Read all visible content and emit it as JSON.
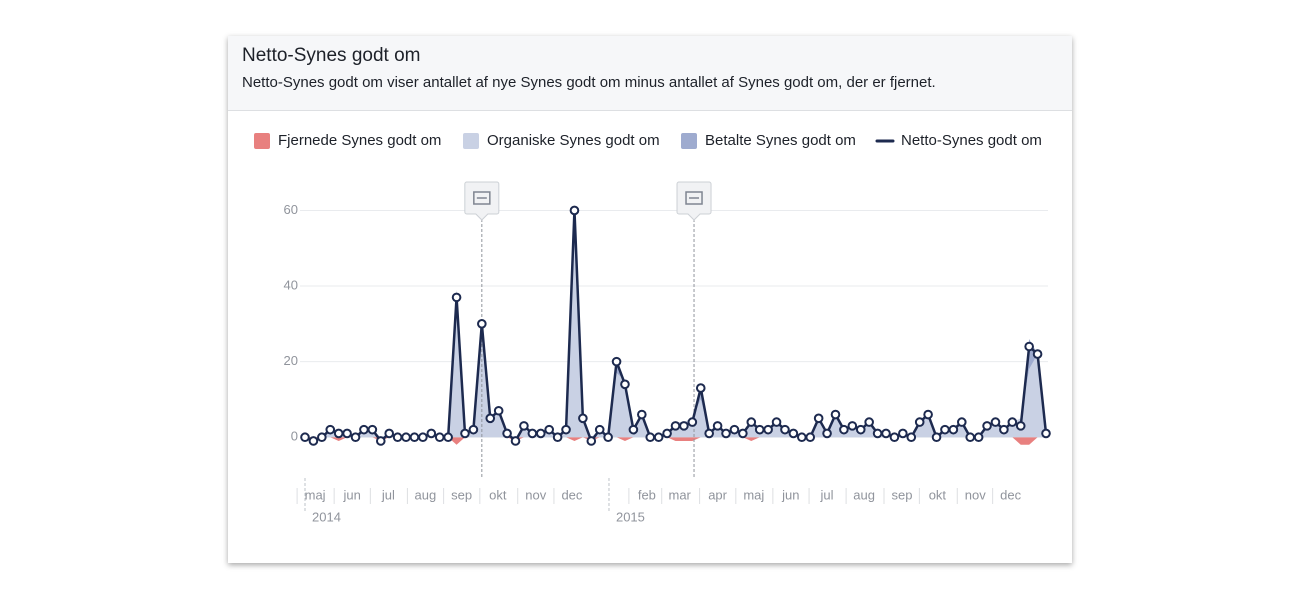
{
  "chart_data": {
    "type": "area",
    "title": "Netto-Synes godt om",
    "subtitle": "Netto-Synes godt om viser antallet af nye Synes godt om minus antallet af Synes godt om, der er fjernet.",
    "xlim": [
      0,
      88
    ],
    "ylim": [
      -10,
      67
    ],
    "yticks": [
      0,
      20,
      40,
      60
    ],
    "grid": true,
    "xticks": [
      {
        "value": 1.2,
        "label": "maj"
      },
      {
        "value": 5.6,
        "label": "jun"
      },
      {
        "value": 9.9,
        "label": "jul"
      },
      {
        "value": 14.3,
        "label": "aug"
      },
      {
        "value": 18.6,
        "label": "sep"
      },
      {
        "value": 22.9,
        "label": "okt"
      },
      {
        "value": 27.4,
        "label": "nov"
      },
      {
        "value": 31.7,
        "label": "dec"
      },
      {
        "value": 40.6,
        "label": "feb"
      },
      {
        "value": 44.5,
        "label": "mar"
      },
      {
        "value": 49.0,
        "label": "apr"
      },
      {
        "value": 53.3,
        "label": "maj"
      },
      {
        "value": 57.7,
        "label": "jun"
      },
      {
        "value": 62.0,
        "label": "jul"
      },
      {
        "value": 66.4,
        "label": "aug"
      },
      {
        "value": 70.9,
        "label": "sep"
      },
      {
        "value": 75.1,
        "label": "okt"
      },
      {
        "value": 79.6,
        "label": "nov"
      },
      {
        "value": 83.8,
        "label": "dec"
      }
    ],
    "years": [
      {
        "value": 0,
        "label": "2014"
      },
      {
        "value": 36.1,
        "label": "2015"
      }
    ],
    "event_markers": [
      21,
      46.2
    ],
    "series": [
      {
        "name": "Fjernede Synes godt om",
        "color": "#e8807f",
        "type": "area",
        "values": [
          0,
          -1,
          0,
          0,
          -1,
          0,
          0,
          0,
          0,
          -1,
          0,
          0,
          0,
          0,
          0,
          0,
          0,
          0,
          -2,
          0,
          0,
          0,
          0,
          0,
          0,
          -1,
          0,
          0,
          0,
          0,
          0,
          0,
          -1,
          0,
          -1,
          0,
          0,
          0,
          -1,
          0,
          0,
          0,
          0,
          0,
          -1,
          -1,
          -1,
          0,
          0,
          0,
          0,
          0,
          0,
          -1,
          0,
          0,
          0,
          0,
          0,
          0,
          0,
          0,
          0,
          0,
          0,
          0,
          0,
          0,
          0,
          0,
          0,
          0,
          0,
          0,
          0,
          0,
          0,
          0,
          0,
          0,
          0,
          0,
          0,
          0,
          0,
          -2,
          -2,
          0,
          0
        ]
      },
      {
        "name": "Organiske Synes godt om",
        "color": "#c9d1e4",
        "type": "area",
        "values": [
          0,
          0,
          0,
          2,
          2,
          1,
          0,
          2,
          2,
          0,
          1,
          0,
          0,
          0,
          0,
          1,
          0,
          0,
          34,
          1,
          2,
          26,
          5,
          7,
          1,
          0,
          3,
          1,
          1,
          2,
          0,
          2,
          51,
          5,
          0,
          2,
          0,
          17,
          15,
          2,
          6,
          0,
          0,
          1,
          4,
          4,
          5,
          10,
          1,
          3,
          1,
          2,
          1,
          5,
          2,
          2,
          4,
          2,
          1,
          0,
          0,
          5,
          1,
          6,
          2,
          3,
          2,
          4,
          1,
          1,
          0,
          1,
          0,
          4,
          6,
          0,
          2,
          2,
          4,
          0,
          0,
          3,
          4,
          2,
          4,
          5,
          18,
          22,
          1
        ]
      },
      {
        "name": "Betalte Synes godt om",
        "color": "#9eabcf",
        "type": "area",
        "values": [
          0,
          0,
          0,
          0,
          0,
          0,
          0,
          0,
          0,
          0,
          0,
          0,
          0,
          0,
          0,
          0,
          0,
          0,
          5,
          0,
          0,
          4,
          0,
          0,
          0,
          0,
          0,
          0,
          0,
          0,
          0,
          0,
          10,
          0,
          0,
          0,
          0,
          3,
          0,
          0,
          0,
          0,
          0,
          0,
          0,
          0,
          0,
          3,
          0,
          0,
          0,
          0,
          0,
          0,
          0,
          0,
          0,
          0,
          0,
          0,
          0,
          0,
          0,
          0,
          0,
          0,
          0,
          0,
          0,
          0,
          0,
          0,
          0,
          0,
          0,
          0,
          0,
          0,
          0,
          0,
          0,
          0,
          0,
          0,
          0,
          0,
          8,
          0,
          0
        ]
      },
      {
        "name": "Netto-Synes godt om",
        "color": "#1d2a4f",
        "type": "line",
        "values": [
          0,
          -1,
          0,
          2,
          1,
          1,
          0,
          2,
          2,
          -1,
          1,
          0,
          0,
          0,
          0,
          1,
          0,
          0,
          37,
          1,
          2,
          30,
          5,
          7,
          1,
          -1,
          3,
          1,
          1,
          2,
          0,
          2,
          60,
          5,
          -1,
          2,
          0,
          20,
          14,
          2,
          6,
          0,
          0,
          1,
          3,
          3,
          4,
          13,
          1,
          3,
          1,
          2,
          1,
          4,
          2,
          2,
          4,
          2,
          1,
          0,
          0,
          5,
          1,
          6,
          2,
          3,
          2,
          4,
          1,
          1,
          0,
          1,
          0,
          4,
          6,
          0,
          2,
          2,
          4,
          0,
          0,
          3,
          4,
          2,
          4,
          3,
          24,
          22,
          1
        ]
      }
    ]
  }
}
